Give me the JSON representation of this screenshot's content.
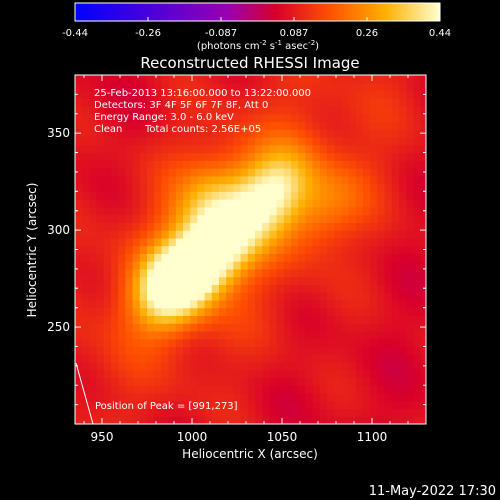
{
  "chart_data": {
    "type": "heatmap",
    "title": "Reconstructed RHESSI Image",
    "xlabel": "Heliocentric X (arcsec)",
    "ylabel": "Heliocentric Y (arcsec)",
    "xlim": [
      935,
      1130
    ],
    "ylim": [
      200,
      380
    ],
    "x_ticks": [
      950,
      1000,
      1050,
      1100
    ],
    "y_ticks": [
      250,
      300,
      350
    ],
    "colorbar": {
      "min": -0.44,
      "max": 0.44,
      "tick_labels": [
        "-0.44",
        "-0.26",
        "-0.087",
        "0.087",
        "0.26",
        "0.44"
      ],
      "unit_main": "(photons cm",
      "unit_sup1": "-2",
      "unit_mid1": " s",
      "unit_sup2": "-1",
      "unit_mid2": " asec",
      "unit_sup3": "-2",
      "unit_end": ")"
    },
    "annotations": [
      "25-Feb-2013 13:16:00.000 to 13:22:00.000",
      "Detectors: 3F 4F 5F 6F 7F 8F, Att 0",
      "Energy Range: 3.0 - 6.0 keV",
      "Clean",
      "Total counts: 2.56E+05"
    ],
    "peak": {
      "label": "Position of Peak = [991,273]",
      "x": 991,
      "y": 273
    },
    "sources": [
      {
        "x": 991,
        "y": 273,
        "intensity": 0.44
      },
      {
        "x": 1015,
        "y": 293,
        "intensity": 0.33
      },
      {
        "x": 1045,
        "y": 320,
        "intensity": 0.27
      },
      {
        "x": 1010,
        "y": 318,
        "intensity": 0.14
      },
      {
        "x": 1075,
        "y": 312,
        "intensity": 0.12
      }
    ],
    "timestamp": "11-May-2022 17:30"
  }
}
